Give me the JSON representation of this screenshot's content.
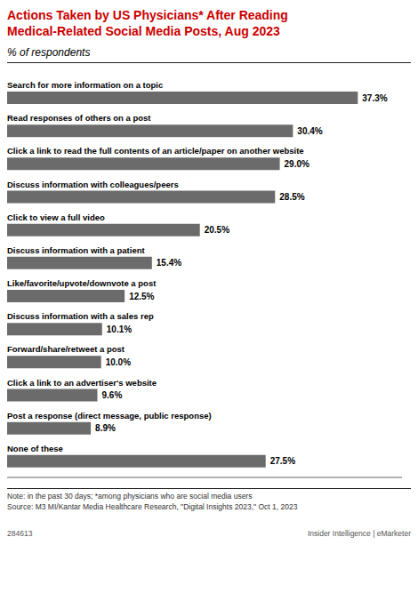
{
  "chart_data": {
    "type": "bar",
    "orientation": "horizontal",
    "title": "Actions Taken by US Physicians* After Reading\nMedical-Related Social Media Posts, Aug 2023",
    "subtitle": "% of respondents",
    "categories": [
      "Search for more information on a topic",
      "Read responses of others on a post",
      "Click a link to read the full contents of an article/paper on another website",
      "Discuss information with colleagues/peers",
      "Click to view a full video",
      "Discuss information with a patient",
      "Like/favorite/upvote/downvote a post",
      "Discuss information with a sales rep",
      "Forward/share/retweet a post",
      "Click a link to an advertiser's website",
      "Post a response (direct message, public response)",
      "None of these"
    ],
    "values": [
      37.3,
      30.4,
      29.0,
      28.5,
      20.5,
      15.4,
      12.5,
      10.1,
      10.0,
      9.6,
      8.9,
      27.5
    ],
    "value_labels": [
      "37.3%",
      "30.4%",
      "29.0%",
      "28.5%",
      "20.5%",
      "15.4%",
      "12.5%",
      "10.1%",
      "10.0%",
      "9.6%",
      "8.9%",
      "27.5%"
    ],
    "data_labels": true,
    "color": "#6b6b6b",
    "title_color": "#cc0000",
    "xlim": [
      0,
      42
    ],
    "tick_labels": false,
    "grid": false,
    "annotations": [
      "Note: in the past 30 days; *among physicians who are social media users",
      "Source: M3 MI/Kantar Media Healthcare Research, \"Digital Insights 2023,\" Oct 1, 2023",
      "284613",
      "Insider Intelligence | eMarketer"
    ]
  }
}
